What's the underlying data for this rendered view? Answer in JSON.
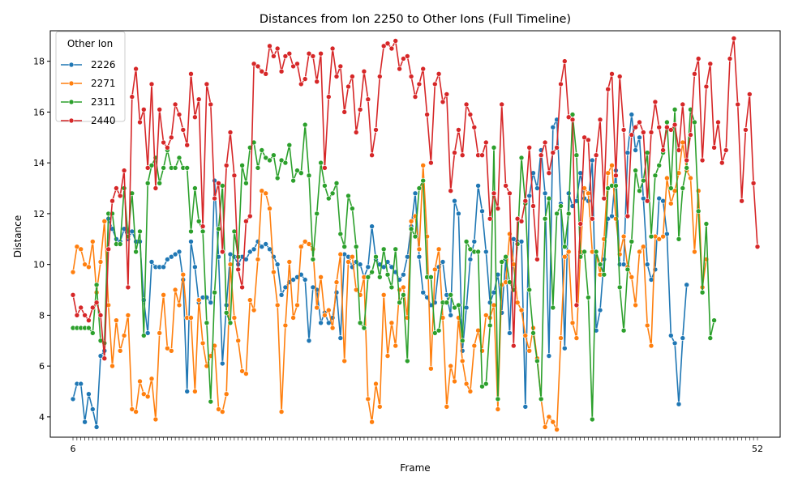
{
  "chart_data": {
    "type": "line",
    "title": "Distances from Ion 2250 to Other Ions (Full Timeline)",
    "xlabel": "Frame",
    "ylabel": "Distance",
    "ylim": [
      3.2,
      19.2
    ],
    "yticks": [
      4,
      6,
      8,
      10,
      12,
      14,
      16,
      18
    ],
    "grid": false,
    "legend": {
      "title": "Other Ion",
      "placement": "top-left"
    },
    "xtick_text_first": "6",
    "xtick_text_last": "52",
    "series": [
      {
        "name": "2226",
        "color": "#1f77b4",
        "values": [
          4.7,
          5.3,
          5.3,
          3.8,
          4.9,
          4.3,
          3.6,
          6.4,
          6.6,
          11.8,
          11.4,
          11.0,
          10.9,
          11.4,
          11.0,
          11.3,
          10.9,
          10.9,
          8.6,
          7.3,
          10.1,
          9.9,
          9.9,
          9.9,
          10.2,
          10.3,
          10.4,
          10.5,
          9.4,
          5.0,
          10.9,
          9.9,
          8.5,
          8.7,
          8.7,
          8.5,
          13.3,
          10.3,
          6.1,
          8.4,
          10.4,
          10.3,
          10.0,
          10.3,
          10.2,
          10.5,
          10.6,
          10.9,
          10.7,
          10.8,
          10.6,
          10.3,
          10.0,
          8.8,
          9.1,
          9.3,
          9.4,
          9.5,
          9.6,
          9.4,
          7.0,
          9.1,
          9.0,
          7.7,
          8.1,
          7.7,
          7.9,
          8.9,
          7.1,
          10.4,
          10.3,
          9.9,
          10.1,
          10.0,
          9.5,
          9.9,
          11.5,
          10.2,
          10.0,
          9.9,
          10.1,
          9.9,
          9.7,
          9.4,
          9.6,
          10.3,
          11.5,
          12.8,
          10.3,
          8.9,
          8.7,
          8.4,
          8.5,
          9.9,
          10.1,
          8.8,
          8.0,
          12.5,
          12.0,
          6.6,
          8.3,
          10.2,
          10.9,
          13.1,
          12.1,
          10.5,
          8.5,
          8.9,
          9.6,
          8.1,
          10.2,
          7.3,
          11.0,
          10.9,
          10.9,
          4.4,
          12.7,
          13.6,
          13.0,
          14.5,
          12.8,
          6.4,
          15.4,
          15.7,
          12.4,
          6.7,
          12.8,
          12.3,
          12.5,
          13.6,
          12.6,
          12.5,
          14.1,
          7.4,
          8.2,
          10.2,
          11.8,
          11.9,
          13.7,
          10.0,
          10.0,
          14.4,
          15.9,
          14.5,
          15.0,
          12.6,
          10.0,
          9.4,
          9.8,
          12.6,
          12.5,
          11.2,
          7.2,
          6.9,
          4.5,
          7.1,
          9.2
        ]
      },
      {
        "name": "2271",
        "color": "#ff7f0e",
        "values": [
          9.7,
          10.7,
          10.6,
          10.0,
          9.9,
          10.9,
          8.9,
          10.1,
          11.7,
          8.4,
          6.0,
          7.8,
          6.6,
          7.2,
          8.0,
          4.3,
          4.2,
          5.4,
          4.9,
          4.8,
          5.5,
          3.9,
          7.3,
          8.8,
          6.7,
          6.6,
          9.0,
          8.4,
          9.6,
          7.9,
          7.9,
          5.0,
          8.6,
          6.9,
          6.0,
          6.4,
          6.8,
          4.3,
          4.2,
          4.9,
          10.0,
          7.9,
          7.0,
          5.8,
          5.7,
          8.6,
          8.2,
          10.2,
          12.9,
          12.8,
          12.2,
          9.7,
          8.4,
          4.2,
          7.6,
          10.1,
          7.9,
          8.4,
          10.7,
          10.9,
          10.8,
          10.6,
          8.3,
          9.5,
          8.0,
          8.2,
          7.5,
          9.3,
          10.4,
          6.2,
          10.1,
          10.3,
          9.0,
          8.8,
          9.5,
          4.7,
          3.8,
          5.3,
          4.4,
          8.8,
          6.4,
          7.7,
          6.8,
          9.0,
          9.1,
          7.9,
          11.7,
          11.9,
          10.6,
          13.9,
          11.1,
          5.9,
          9.8,
          10.6,
          7.9,
          4.4,
          6.0,
          5.4,
          7.9,
          6.2,
          5.3,
          5.0,
          6.8,
          7.4,
          6.6,
          8.0,
          7.9,
          8.4,
          4.3,
          9.2,
          9.3,
          11.2,
          10.0,
          8.5,
          8.2,
          7.2,
          6.6,
          7.5,
          6.3,
          4.7,
          3.6,
          4.0,
          3.8,
          3.5,
          7.1,
          10.3,
          10.5,
          7.7,
          7.1,
          10.5,
          13.0,
          12.8,
          10.5,
          10.5,
          9.6,
          11.0,
          13.6,
          13.9,
          11.8,
          10.4,
          11.1,
          9.9,
          9.5,
          8.4,
          10.5,
          10.7,
          7.6,
          6.8,
          11.1,
          11.0,
          11.1,
          13.4,
          12.4,
          12.9,
          13.6,
          14.8,
          13.7,
          13.4,
          10.5,
          12.9,
          9.1,
          10.2
        ]
      },
      {
        "name": "2311",
        "color": "#2ca02c",
        "values": [
          7.5,
          7.5,
          7.5,
          7.5,
          7.5,
          7.3,
          9.2,
          7.0,
          6.9,
          12.0,
          12.0,
          10.8,
          10.8,
          13.0,
          11.1,
          12.8,
          10.5,
          11.3,
          7.2,
          13.2,
          13.9,
          14.2,
          13.2,
          13.8,
          14.5,
          13.8,
          13.8,
          14.2,
          13.8,
          13.8,
          11.3,
          13.0,
          11.7,
          11.3,
          7.7,
          4.6,
          8.9,
          11.4,
          13.1,
          8.1,
          7.7,
          11.3,
          10.3,
          13.9,
          13.2,
          14.6,
          14.8,
          13.8,
          14.5,
          14.2,
          14.1,
          14.3,
          13.4,
          14.1,
          14.0,
          14.7,
          13.3,
          13.7,
          13.6,
          15.5,
          13.5,
          10.2,
          12.0,
          14.0,
          13.1,
          12.6,
          12.8,
          13.2,
          11.2,
          10.7,
          12.7,
          12.2,
          10.7,
          7.7,
          7.5,
          9.5,
          9.7,
          10.3,
          9.5,
          10.6,
          9.6,
          9.1,
          10.6,
          8.5,
          8.8,
          6.2,
          11.4,
          11.1,
          13.0,
          13.3,
          9.5,
          9.5,
          7.3,
          7.4,
          8.5,
          8.5,
          8.8,
          8.3,
          8.4,
          7.0,
          10.9,
          10.6,
          10.5,
          10.5,
          5.2,
          5.3,
          7.6,
          14.6,
          4.7,
          10.1,
          10.3,
          9.3,
          9.0,
          10.8,
          14.2,
          12.4,
          9.0,
          7.3,
          6.2,
          4.7,
          11.8,
          12.6,
          8.3,
          12.0,
          12.3,
          10.7,
          12.0,
          15.9,
          14.3,
          10.3,
          10.5,
          8.7,
          3.9,
          10.5,
          10.0,
          9.6,
          13.0,
          13.1,
          13.1,
          9.1,
          7.4,
          9.8,
          10.9,
          13.7,
          12.9,
          13.3,
          14.4,
          11.1,
          13.5,
          13.9,
          14.4,
          15.6,
          13.0,
          16.1,
          11.0,
          13.0,
          13.8,
          16.1,
          15.6,
          12.1,
          8.9,
          11.6,
          7.1,
          7.8
        ]
      },
      {
        "name": "2440",
        "color": "#d62728",
        "values": [
          8.8,
          8.0,
          8.3,
          8.0,
          7.8,
          8.3,
          8.5,
          8.0,
          6.3,
          10.6,
          12.5,
          13.0,
          12.7,
          13.7,
          9.1,
          16.6,
          17.7,
          15.6,
          16.1,
          13.8,
          17.1,
          13.0,
          16.1,
          14.8,
          14.6,
          15.0,
          16.3,
          15.9,
          15.3,
          14.7,
          17.5,
          15.8,
          16.5,
          11.5,
          17.1,
          16.3,
          12.6,
          13.2,
          10.5,
          13.9,
          15.2,
          13.5,
          9.8,
          9.1,
          11.7,
          11.9,
          17.9,
          17.8,
          17.6,
          17.5,
          18.6,
          18.2,
          18.5,
          17.6,
          18.2,
          18.3,
          17.8,
          17.9,
          17.1,
          17.3,
          18.3,
          18.2,
          17.2,
          18.3,
          13.8,
          16.6,
          18.5,
          17.4,
          17.8,
          16.0,
          17.0,
          17.4,
          15.2,
          16.1,
          17.6,
          16.5,
          14.3,
          15.3,
          17.4,
          18.6,
          18.7,
          18.5,
          18.8,
          17.7,
          18.1,
          18.2,
          17.4,
          16.6,
          17.1,
          17.7,
          15.9,
          14.0,
          17.1,
          17.5,
          16.4,
          16.7,
          12.9,
          14.4,
          15.3,
          14.3,
          16.3,
          15.9,
          15.4,
          14.3,
          14.3,
          14.8,
          11.8,
          12.8,
          12.2,
          16.3,
          13.1,
          12.8,
          6.8,
          11.8,
          11.7,
          12.5,
          14.6,
          12.3,
          10.2,
          14.3,
          14.8,
          13.6,
          14.4,
          14.6,
          17.1,
          18.0,
          15.8,
          15.7,
          8.4,
          11.6,
          15.0,
          14.9,
          11.8,
          14.3,
          15.7,
          12.6,
          16.9,
          17.5,
          13.5,
          17.4,
          15.3,
          11.9,
          15.1,
          15.4,
          15.6,
          15.2,
          12.5,
          15.2,
          16.4,
          15.4,
          14.5,
          15.4,
          15.3,
          15.5,
          14.5,
          16.3,
          14.1,
          15.1,
          17.5,
          18.1,
          14.1,
          17.0,
          17.9,
          14.6,
          15.6,
          14.0,
          14.5,
          18.1,
          18.9,
          16.3,
          12.5,
          15.3,
          16.7,
          13.2,
          10.7
        ]
      }
    ]
  }
}
